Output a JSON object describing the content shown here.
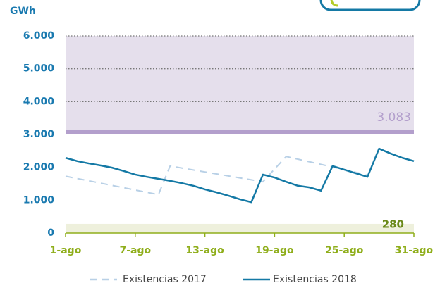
{
  "chart_data": {
    "type": "line",
    "y_label": "GWh",
    "x": [
      1,
      2,
      3,
      4,
      5,
      6,
      7,
      8,
      9,
      10,
      11,
      12,
      13,
      14,
      15,
      16,
      17,
      18,
      19,
      20,
      21,
      22,
      23,
      24,
      25,
      26,
      27,
      28,
      29,
      30,
      31
    ],
    "series": [
      {
        "name": "Existencias 2017",
        "color": "#b8d0e6",
        "dashed": true,
        "values": [
          1730,
          1660,
          1590,
          1520,
          1450,
          1380,
          1310,
          1240,
          1170,
          2040,
          1980,
          1920,
          1860,
          1800,
          1740,
          1680,
          1620,
          1560,
          1950,
          2330,
          2250,
          2170,
          2090,
          2010,
          1930,
          1850,
          1760,
          null,
          null,
          null,
          null
        ]
      },
      {
        "name": "Existencias 2018",
        "color": "#1479a5",
        "dashed": false,
        "values": [
          2290,
          2190,
          2120,
          2060,
          1990,
          1890,
          1780,
          1710,
          1650,
          1590,
          1520,
          1440,
          1330,
          1240,
          1140,
          1030,
          940,
          1780,
          1690,
          1560,
          1440,
          1390,
          1290,
          2040,
          1930,
          1820,
          1710,
          2570,
          2420,
          2290,
          2190
        ]
      }
    ],
    "thresholds": [
      {
        "value": 3083,
        "label": "3.083",
        "color": "#b39fcc",
        "band_color": "#e5dfec",
        "fill_to": "top"
      },
      {
        "value": 280,
        "label": "280",
        "color": "#6b8a1a",
        "band_color": "#eef0dc",
        "fill_to": "bottom"
      }
    ],
    "xlim": [
      1,
      31
    ],
    "xticks": [
      {
        "value": 1,
        "label": "1-ago"
      },
      {
        "value": 7,
        "label": "7-ago"
      },
      {
        "value": 13,
        "label": "13-ago"
      },
      {
        "value": 19,
        "label": "19-ago"
      },
      {
        "value": 25,
        "label": "25-ago"
      },
      {
        "value": 31,
        "label": "31-ago"
      }
    ],
    "ylim": [
      0,
      6000
    ],
    "yticks": [
      0,
      {
        "value": 1000,
        "label": "1.000"
      },
      {
        "value": 2000,
        "label": "2.000"
      },
      {
        "value": 3000,
        "label": "3.000"
      },
      {
        "value": 4000,
        "label": "4.000"
      },
      {
        "value": 5000,
        "label": "5.000"
      },
      {
        "value": 6000,
        "label": "6.000"
      }
    ],
    "grid": true,
    "legend": "bottom"
  }
}
